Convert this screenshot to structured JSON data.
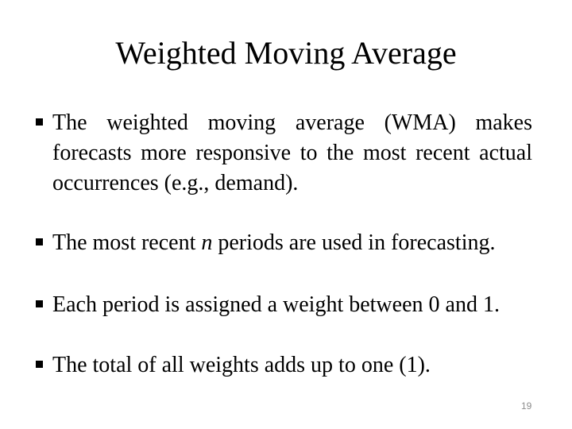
{
  "slide": {
    "title": "Weighted Moving Average",
    "bullets": [
      {
        "lines": [
          "The weighted moving average (WMA) makes",
          "forecasts more responsive to the most recent actual",
          "occurrences (e.g., demand)."
        ]
      },
      {
        "pre": "The most recent ",
        "emphasis": "n",
        "post": " periods are used in forecasting."
      },
      {
        "text": "Each period is assigned a weight between 0 and 1."
      },
      {
        "text": "The total of all weights adds up to one (1)."
      }
    ],
    "page_number": "19"
  },
  "colors": {
    "background": "#ffffff",
    "text": "#000000",
    "page_number": "#8c8c8c"
  }
}
